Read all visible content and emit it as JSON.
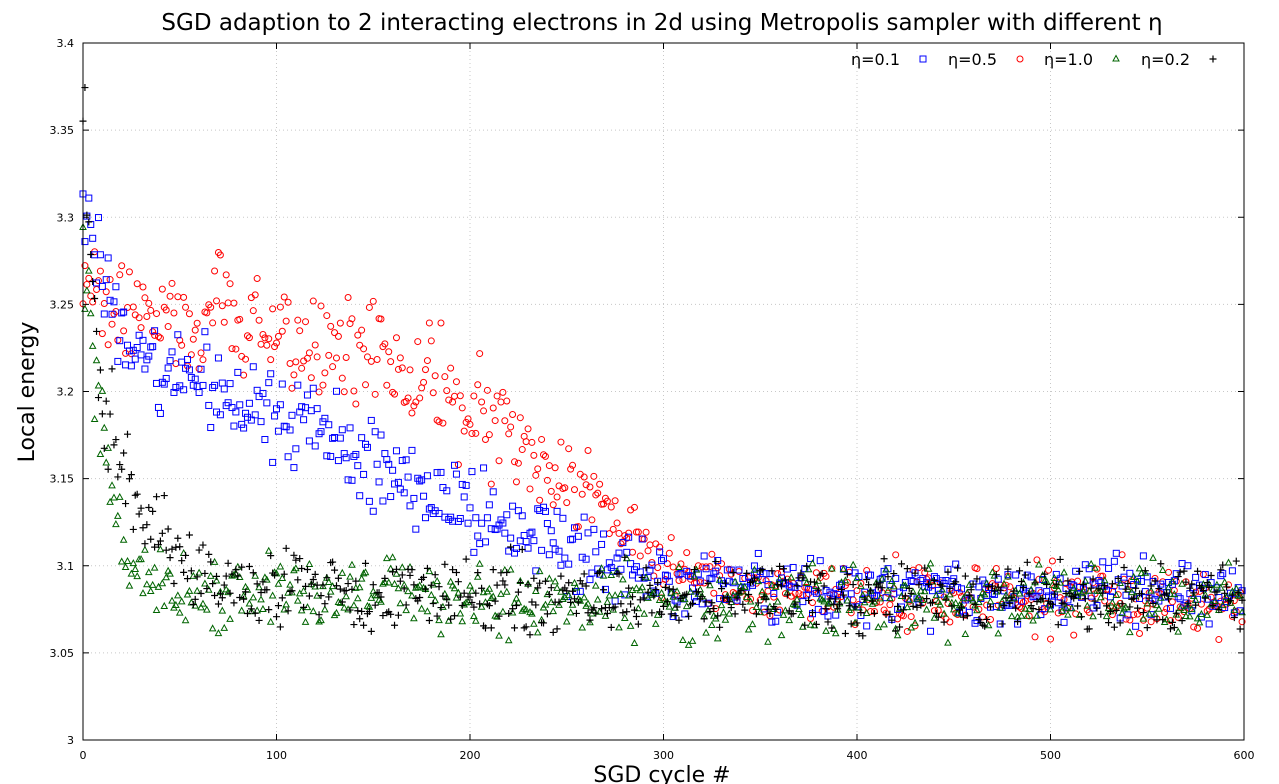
{
  "chart_data": {
    "type": "scatter",
    "title": "SGD adaption to 2 interacting electrons in 2d using Metropolis sampler with different η",
    "xlabel": "SGD cycle #",
    "ylabel": "Local energy",
    "xlim": [
      0,
      600
    ],
    "ylim": [
      3.0,
      3.4
    ],
    "x_ticks": [
      "0",
      "100",
      "200",
      "300",
      "400",
      "500",
      "600"
    ],
    "y_ticks": [
      "3",
      "3.05",
      "3.1",
      "3.15",
      "3.2",
      "3.25",
      "3.3",
      "3.35",
      "3.4"
    ],
    "grid": true,
    "legend_position": "top-right",
    "point_count_per_series": 600,
    "series": [
      {
        "name": "η=0.1",
        "marker": "square",
        "color": "#0000ff",
        "trend": [
          [
            0,
            3.32
          ],
          [
            20,
            3.225
          ],
          [
            60,
            3.205
          ],
          [
            100,
            3.19
          ],
          [
            150,
            3.16
          ],
          [
            200,
            3.13
          ],
          [
            250,
            3.11
          ],
          [
            300,
            3.09
          ],
          [
            400,
            3.085
          ],
          [
            600,
            3.085
          ]
        ],
        "spread": [
          [
            0,
            0.025
          ],
          [
            100,
            0.025
          ],
          [
            250,
            0.022
          ],
          [
            300,
            0.017
          ],
          [
            600,
            0.016
          ]
        ]
      },
      {
        "name": "η=0.5",
        "marker": "circle",
        "color": "#ff0000",
        "trend": [
          [
            0,
            3.265
          ],
          [
            20,
            3.25
          ],
          [
            60,
            3.24
          ],
          [
            100,
            3.235
          ],
          [
            150,
            3.22
          ],
          [
            200,
            3.19
          ],
          [
            240,
            3.155
          ],
          [
            270,
            3.13
          ],
          [
            300,
            3.1
          ],
          [
            360,
            3.085
          ],
          [
            600,
            3.08
          ]
        ],
        "spread": [
          [
            0,
            0.03
          ],
          [
            200,
            0.03
          ],
          [
            260,
            0.022
          ],
          [
            310,
            0.016
          ],
          [
            600,
            0.017
          ]
        ]
      },
      {
        "name": "η=1.0",
        "marker": "triangle",
        "color": "#006400",
        "trend": [
          [
            0,
            3.28
          ],
          [
            5,
            3.2
          ],
          [
            20,
            3.11
          ],
          [
            40,
            3.085
          ],
          [
            300,
            3.08
          ],
          [
            600,
            3.08
          ]
        ],
        "spread": [
          [
            0,
            0.04
          ],
          [
            20,
            0.02
          ],
          [
            600,
            0.017
          ]
        ]
      },
      {
        "name": "η=0.2",
        "marker": "plus",
        "color": "#000000",
        "trend": [
          [
            0,
            3.35
          ],
          [
            10,
            3.2
          ],
          [
            30,
            3.135
          ],
          [
            60,
            3.09
          ],
          [
            100,
            3.085
          ],
          [
            300,
            3.083
          ],
          [
            600,
            3.082
          ]
        ],
        "spread": [
          [
            0,
            0.04
          ],
          [
            30,
            0.02
          ],
          [
            600,
            0.018
          ]
        ]
      }
    ]
  }
}
